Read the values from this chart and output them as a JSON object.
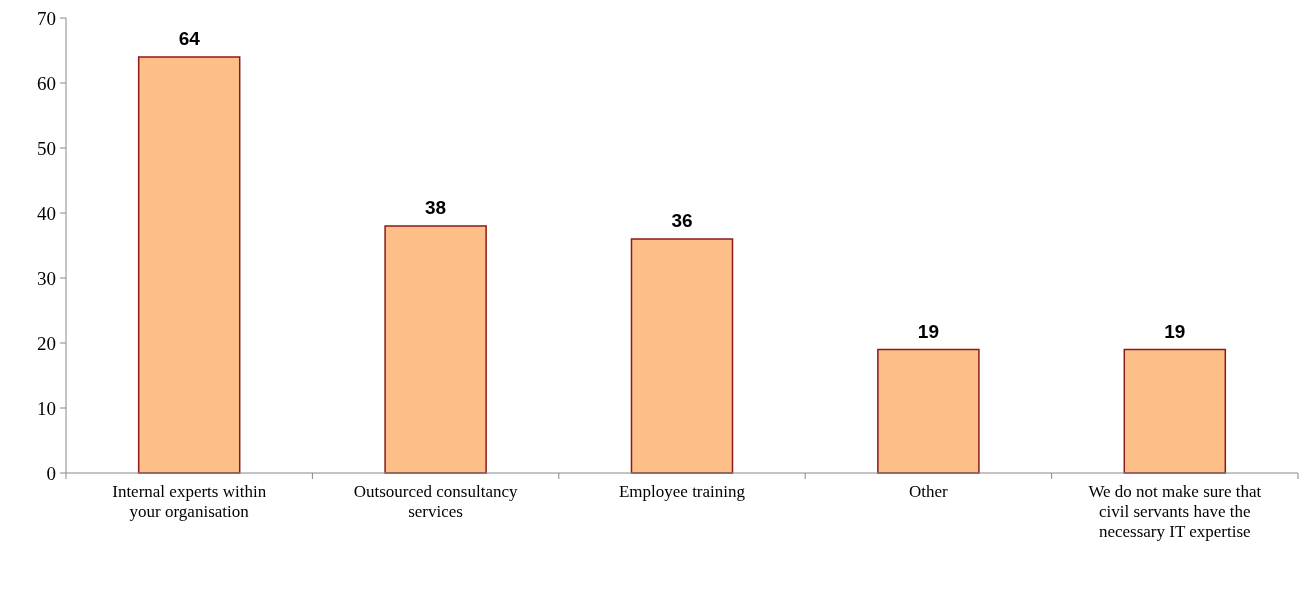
{
  "chart_data": {
    "type": "bar",
    "categories": [
      "Internal experts within your organisation",
      "Outsourced consultancy services",
      "Employee training",
      "Other",
      "We do not make sure that civil servants have the necessary IT expertise"
    ],
    "values": [
      64,
      38,
      36,
      19,
      19
    ],
    "color": "#fdbf87",
    "ylim": [
      0,
      70
    ],
    "yticks": [
      0,
      10,
      20,
      30,
      40,
      50,
      60,
      70
    ],
    "data_labels": true,
    "grid": false
  }
}
